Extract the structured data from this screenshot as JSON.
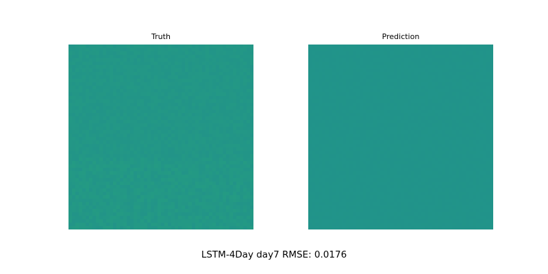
{
  "suptitle": "LSTM-4Day day7 RMSE: 0.0176",
  "chart_data": [
    {
      "type": "heatmap",
      "title": "Truth",
      "colormap": "viridis",
      "base_color": "#229488",
      "axes_visible": false,
      "texture": "noisy",
      "accent_color": "#25a07f"
    },
    {
      "type": "heatmap",
      "title": "Prediction",
      "colormap": "viridis",
      "base_color": "#21938a",
      "axes_visible": false,
      "texture": "smooth",
      "accent_color": "#239a86"
    }
  ]
}
